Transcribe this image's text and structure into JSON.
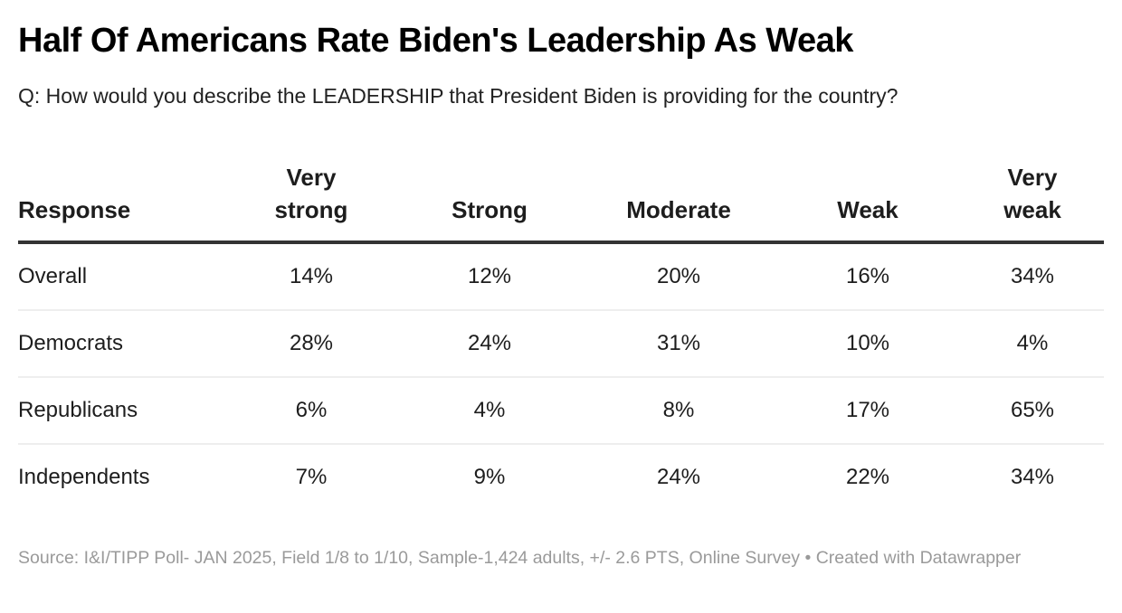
{
  "header": {
    "title": "Half Of Americans Rate Biden's Leadership As Weak",
    "subtitle": "Q: How would you describe the LEADERSHIP that President Biden is providing for the country?"
  },
  "footer": {
    "source": "Source: I&I/TIPP Poll- JAN 2025, Field 1/8 to 1/10, Sample-1,424 adults, +/- 2.6 PTS, Online Survey",
    "separator": " • ",
    "credit": "Created with Datawrapper"
  },
  "colors": {
    "title": "#000000",
    "text": "#1d1d1d",
    "header_rule": "#333333",
    "row_rule": "#eeeeee",
    "footer_text": "#9a9a9a"
  },
  "chart_data": {
    "type": "table",
    "title": "Half Of Americans Rate Biden's Leadership As Weak",
    "subtitle": "Q: How would you describe the LEADERSHIP that President Biden is providing for the country?",
    "columns": [
      "Response",
      "Very strong",
      "Strong",
      "Moderate",
      "Weak",
      "Very weak"
    ],
    "rows": [
      {
        "label": "Overall",
        "values": [
          "14%",
          "12%",
          "20%",
          "16%",
          "34%"
        ]
      },
      {
        "label": "Democrats",
        "values": [
          "28%",
          "24%",
          "31%",
          "10%",
          "4%"
        ]
      },
      {
        "label": "Republicans",
        "values": [
          "6%",
          "4%",
          "8%",
          "17%",
          "65%"
        ]
      },
      {
        "label": "Independents",
        "values": [
          "7%",
          "9%",
          "24%",
          "22%",
          "34%"
        ]
      }
    ],
    "categories": [
      "Very strong",
      "Strong",
      "Moderate",
      "Weak",
      "Very weak"
    ],
    "series": [
      {
        "name": "Overall",
        "values": [
          14,
          12,
          20,
          16,
          34
        ]
      },
      {
        "name": "Democrats",
        "values": [
          28,
          24,
          31,
          10,
          4
        ]
      },
      {
        "name": "Republicans",
        "values": [
          6,
          4,
          8,
          17,
          65
        ]
      },
      {
        "name": "Independents",
        "values": [
          7,
          9,
          24,
          22,
          34
        ]
      }
    ],
    "unit": "%"
  }
}
